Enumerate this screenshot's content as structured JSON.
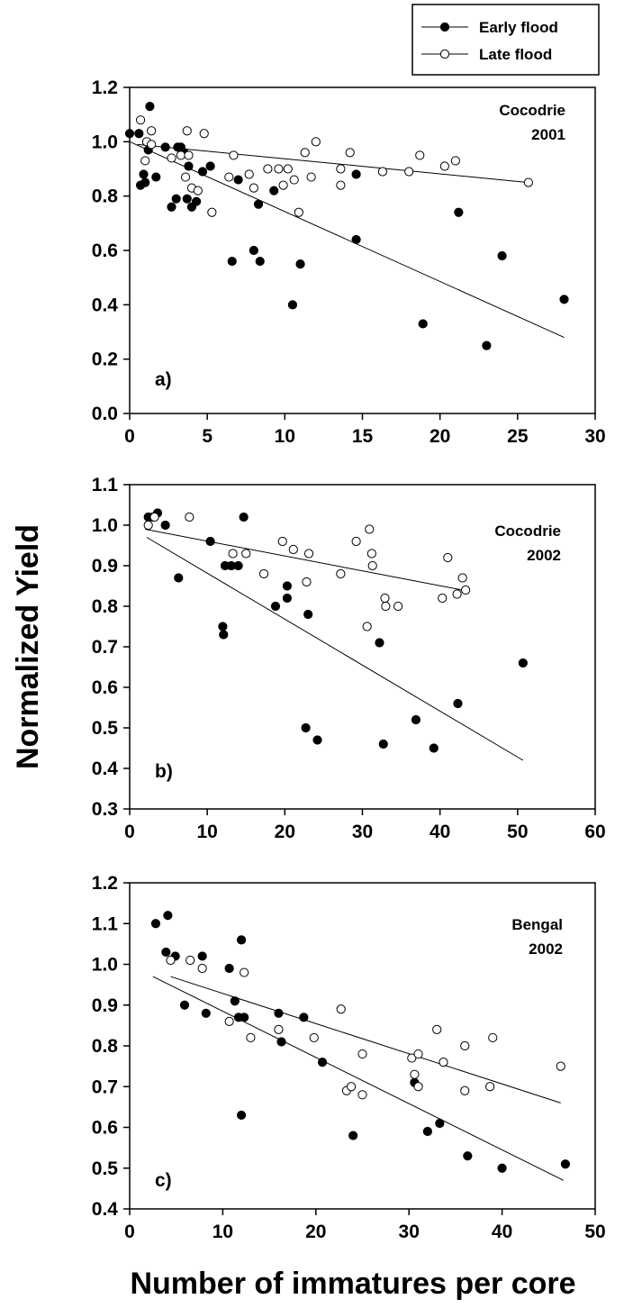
{
  "figure": {
    "ylabel": "Normalized Yield",
    "xlabel": "Number of immatures per core"
  },
  "legend": {
    "entries": [
      {
        "label": "Early flood",
        "marker": "filled"
      },
      {
        "label": "Late flood",
        "marker": "open"
      }
    ],
    "placement": "top-right"
  },
  "chart_data": [
    {
      "type": "scatter",
      "panel_label": "a)",
      "annotation": [
        "Cocodrie",
        "2001"
      ],
      "xlim": [
        0,
        30
      ],
      "ylim": [
        0.0,
        1.2
      ],
      "xticks": [
        "0",
        "5",
        "10",
        "15",
        "20",
        "25",
        "30"
      ],
      "yticks": [
        "0.0",
        "0.2",
        "0.4",
        "0.6",
        "0.8",
        "1.0",
        "1.2"
      ],
      "series": [
        {
          "name": "Early flood",
          "marker": "filled",
          "points": [
            [
              0,
              1.03
            ],
            [
              0.6,
              1.03
            ],
            [
              0.7,
              0.84
            ],
            [
              0.9,
              0.88
            ],
            [
              1.0,
              0.85
            ],
            [
              1.2,
              0.97
            ],
            [
              1.3,
              1.13
            ],
            [
              1.7,
              0.87
            ],
            [
              2.3,
              0.98
            ],
            [
              2.7,
              0.76
            ],
            [
              3.0,
              0.79
            ],
            [
              3.1,
              0.98
            ],
            [
              3.3,
              0.98
            ],
            [
              3.5,
              0.96
            ],
            [
              3.7,
              0.79
            ],
            [
              3.8,
              0.91
            ],
            [
              4.0,
              0.76
            ],
            [
              4.3,
              0.78
            ],
            [
              4.7,
              0.89
            ],
            [
              5.2,
              0.91
            ],
            [
              6.6,
              0.56
            ],
            [
              7.0,
              0.86
            ],
            [
              8.0,
              0.6
            ],
            [
              8.3,
              0.77
            ],
            [
              8.4,
              0.56
            ],
            [
              9.3,
              0.82
            ],
            [
              10.5,
              0.4
            ],
            [
              11.0,
              0.55
            ],
            [
              14.6,
              0.88
            ],
            [
              14.6,
              0.64
            ],
            [
              18.9,
              0.33
            ],
            [
              21.2,
              0.74
            ],
            [
              23.0,
              0.25
            ],
            [
              24.0,
              0.58
            ],
            [
              28.0,
              0.42
            ]
          ],
          "trend": [
            [
              0,
              1.0
            ],
            [
              28,
              0.28
            ]
          ]
        },
        {
          "name": "Late flood",
          "marker": "open",
          "points": [
            [
              0.7,
              1.08
            ],
            [
              1.0,
              0.93
            ],
            [
              1.1,
              1.0
            ],
            [
              1.4,
              0.99
            ],
            [
              1.4,
              1.04
            ],
            [
              2.7,
              0.94
            ],
            [
              3.3,
              0.95
            ],
            [
              3.6,
              0.87
            ],
            [
              3.7,
              1.04
            ],
            [
              3.8,
              0.95
            ],
            [
              4.0,
              0.83
            ],
            [
              4.4,
              0.82
            ],
            [
              4.8,
              1.03
            ],
            [
              5.3,
              0.74
            ],
            [
              6.4,
              0.87
            ],
            [
              6.7,
              0.95
            ],
            [
              7.7,
              0.88
            ],
            [
              8.0,
              0.83
            ],
            [
              8.9,
              0.9
            ],
            [
              9.6,
              0.9
            ],
            [
              9.9,
              0.84
            ],
            [
              10.2,
              0.9
            ],
            [
              10.6,
              0.86
            ],
            [
              10.9,
              0.74
            ],
            [
              11.3,
              0.96
            ],
            [
              11.7,
              0.87
            ],
            [
              12.0,
              1.0
            ],
            [
              13.6,
              0.9
            ],
            [
              13.6,
              0.84
            ],
            [
              14.2,
              0.96
            ],
            [
              16.3,
              0.89
            ],
            [
              18.0,
              0.89
            ],
            [
              18.7,
              0.95
            ],
            [
              20.3,
              0.91
            ],
            [
              21.0,
              0.93
            ],
            [
              25.7,
              0.85
            ]
          ],
          "trend": [
            [
              0.5,
              0.99
            ],
            [
              25.7,
              0.85
            ]
          ]
        }
      ]
    },
    {
      "type": "scatter",
      "panel_label": "b)",
      "annotation": [
        "Cocodrie",
        "2002"
      ],
      "xlim": [
        0,
        60
      ],
      "ylim": [
        0.3,
        1.1
      ],
      "xticks": [
        "0",
        "10",
        "20",
        "30",
        "40",
        "50",
        "60"
      ],
      "yticks": [
        "0.3",
        "0.4",
        "0.5",
        "0.6",
        "0.7",
        "0.8",
        "0.9",
        "1.0",
        "1.1"
      ],
      "series": [
        {
          "name": "Early flood",
          "marker": "filled",
          "points": [
            [
              2.4,
              1.02
            ],
            [
              3.0,
              1.02
            ],
            [
              3.6,
              1.03
            ],
            [
              4.6,
              1.0
            ],
            [
              6.3,
              0.87
            ],
            [
              10.4,
              0.96
            ],
            [
              12.0,
              0.75
            ],
            [
              12.1,
              0.73
            ],
            [
              12.3,
              0.9
            ],
            [
              13.1,
              0.9
            ],
            [
              14.0,
              0.9
            ],
            [
              14.7,
              1.02
            ],
            [
              18.8,
              0.8
            ],
            [
              20.3,
              0.85
            ],
            [
              20.3,
              0.82
            ],
            [
              22.7,
              0.5
            ],
            [
              23.0,
              0.78
            ],
            [
              24.2,
              0.47
            ],
            [
              32.2,
              0.71
            ],
            [
              32.7,
              0.46
            ],
            [
              36.9,
              0.52
            ],
            [
              39.2,
              0.45
            ],
            [
              42.3,
              0.56
            ],
            [
              50.7,
              0.66
            ]
          ],
          "trend": [
            [
              2.2,
              0.97
            ],
            [
              50.7,
              0.42
            ]
          ]
        },
        {
          "name": "Late flood",
          "marker": "open",
          "points": [
            [
              2.4,
              1.0
            ],
            [
              3.2,
              1.02
            ],
            [
              7.7,
              1.02
            ],
            [
              13.3,
              0.93
            ],
            [
              15.0,
              0.93
            ],
            [
              17.3,
              0.88
            ],
            [
              19.7,
              0.96
            ],
            [
              21.1,
              0.94
            ],
            [
              22.8,
              0.86
            ],
            [
              23.1,
              0.93
            ],
            [
              27.2,
              0.88
            ],
            [
              29.2,
              0.96
            ],
            [
              30.6,
              0.75
            ],
            [
              30.9,
              0.99
            ],
            [
              31.2,
              0.93
            ],
            [
              31.3,
              0.9
            ],
            [
              32.9,
              0.82
            ],
            [
              33.0,
              0.8
            ],
            [
              34.6,
              0.8
            ],
            [
              40.3,
              0.82
            ],
            [
              41.0,
              0.92
            ],
            [
              42.2,
              0.83
            ],
            [
              42.9,
              0.87
            ],
            [
              43.3,
              0.84
            ]
          ],
          "trend": [
            [
              2.0,
              0.99
            ],
            [
              42.9,
              0.84
            ]
          ]
        }
      ]
    },
    {
      "type": "scatter",
      "panel_label": "c)",
      "annotation": [
        "Bengal",
        "2002"
      ],
      "xlim": [
        0,
        50
      ],
      "ylim": [
        0.4,
        1.2
      ],
      "xticks": [
        "0",
        "10",
        "20",
        "30",
        "40",
        "50"
      ],
      "yticks": [
        "0.4",
        "0.5",
        "0.6",
        "0.7",
        "0.8",
        "0.9",
        "1.0",
        "1.1",
        "1.2"
      ],
      "series": [
        {
          "name": "Early flood",
          "marker": "filled",
          "points": [
            [
              2.8,
              1.1
            ],
            [
              3.9,
              1.03
            ],
            [
              4.1,
              1.12
            ],
            [
              4.9,
              1.02
            ],
            [
              5.9,
              0.9
            ],
            [
              7.8,
              1.02
            ],
            [
              8.2,
              0.88
            ],
            [
              10.7,
              0.99
            ],
            [
              11.3,
              0.91
            ],
            [
              11.7,
              0.87
            ],
            [
              12.0,
              1.06
            ],
            [
              12.0,
              0.63
            ],
            [
              12.3,
              0.87
            ],
            [
              16.0,
              0.88
            ],
            [
              16.3,
              0.81
            ],
            [
              18.7,
              0.87
            ],
            [
              20.7,
              0.76
            ],
            [
              24.0,
              0.58
            ],
            [
              30.6,
              0.71
            ],
            [
              32.0,
              0.59
            ],
            [
              33.3,
              0.61
            ],
            [
              36.3,
              0.53
            ],
            [
              40.0,
              0.5
            ],
            [
              46.8,
              0.51
            ]
          ],
          "trend": [
            [
              2.5,
              0.97
            ],
            [
              46.6,
              0.47
            ]
          ]
        },
        {
          "name": "Late flood",
          "marker": "open",
          "points": [
            [
              4.4,
              1.01
            ],
            [
              6.5,
              1.01
            ],
            [
              7.8,
              0.99
            ],
            [
              10.7,
              0.86
            ],
            [
              12.3,
              0.98
            ],
            [
              13.0,
              0.82
            ],
            [
              16.0,
              0.84
            ],
            [
              19.8,
              0.82
            ],
            [
              22.7,
              0.89
            ],
            [
              23.3,
              0.69
            ],
            [
              23.8,
              0.7
            ],
            [
              25.0,
              0.68
            ],
            [
              25.0,
              0.78
            ],
            [
              30.3,
              0.77
            ],
            [
              30.6,
              0.73
            ],
            [
              31.0,
              0.78
            ],
            [
              31.0,
              0.7
            ],
            [
              33.0,
              0.84
            ],
            [
              33.7,
              0.76
            ],
            [
              36.0,
              0.8
            ],
            [
              36.0,
              0.69
            ],
            [
              38.7,
              0.7
            ],
            [
              39.0,
              0.82
            ],
            [
              46.3,
              0.75
            ]
          ],
          "trend": [
            [
              4.4,
              0.97
            ],
            [
              46.3,
              0.66
            ]
          ]
        }
      ]
    }
  ]
}
